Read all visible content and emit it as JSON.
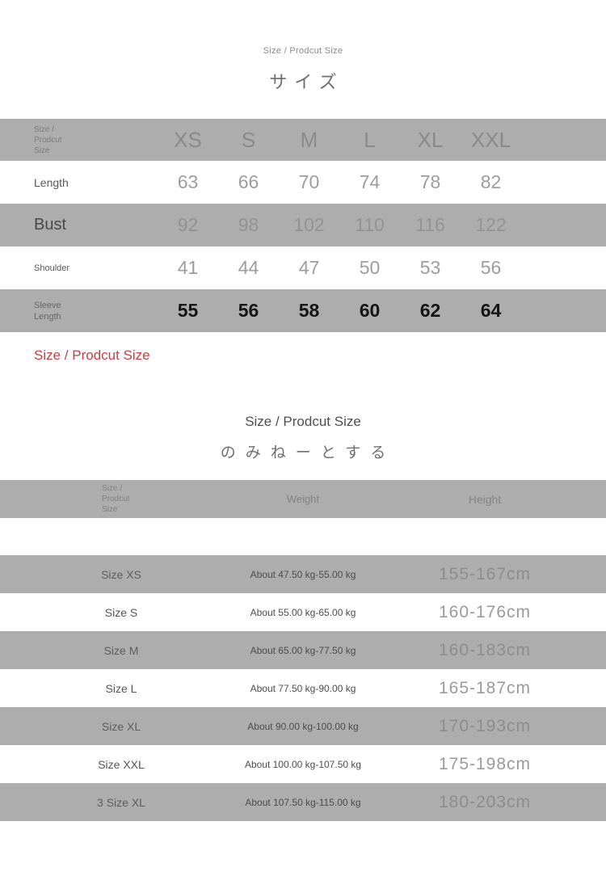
{
  "header": {
    "small_title": "Size / Prodcut Size",
    "jp_title": "サイズ"
  },
  "size_table": {
    "corner_label": "Size / Prodcut Size",
    "columns": [
      "XS",
      "S",
      "M",
      "L",
      "XL",
      "XXL"
    ],
    "rows": [
      {
        "label": "Length",
        "values": [
          "63",
          "66",
          "70",
          "74",
          "78",
          "82"
        ]
      },
      {
        "label": "Bust",
        "values": [
          "92",
          "98",
          "102",
          "110",
          "116",
          "122"
        ]
      },
      {
        "label": "Shoulder",
        "values": [
          "41",
          "44",
          "47",
          "50",
          "53",
          "56"
        ]
      },
      {
        "label": "Sleeve Length",
        "values": [
          "55",
          "56",
          "58",
          "60",
          "62",
          "64"
        ]
      }
    ]
  },
  "red_note": "Size / Prodcut Size",
  "section2": {
    "title_en": "Size / Prodcut Size",
    "title_jp": "のみねーとする"
  },
  "fit_table": {
    "corner_label": "Size / Prodcut Size",
    "weight_header": "Weight",
    "height_header": "Height",
    "rows": [
      {
        "size": "Size XS",
        "weight": "About 47.50 kg-55.00 kg",
        "height": "155-167cm"
      },
      {
        "size": "Size S",
        "weight": "About 55.00 kg-65.00 kg",
        "height": "160-176cm"
      },
      {
        "size": "Size M",
        "weight": "About 65.00 kg-77.50 kg",
        "height": "160-183cm"
      },
      {
        "size": "Size L",
        "weight": "About 77.50 kg-90.00 kg",
        "height": "165-187cm"
      },
      {
        "size": "Size XL",
        "weight": "About 90.00 kg-100.00 kg",
        "height": "170-193cm"
      },
      {
        "size": "Size XXL",
        "weight": "About 100.00 kg-107.50 kg",
        "height": "175-198cm"
      },
      {
        "size": "3 Size XL",
        "weight": "About 107.50 kg-115.00 kg",
        "height": "180-203cm"
      }
    ]
  },
  "colors": {
    "band_gray": "#adadad",
    "accent_red": "#c54040"
  }
}
